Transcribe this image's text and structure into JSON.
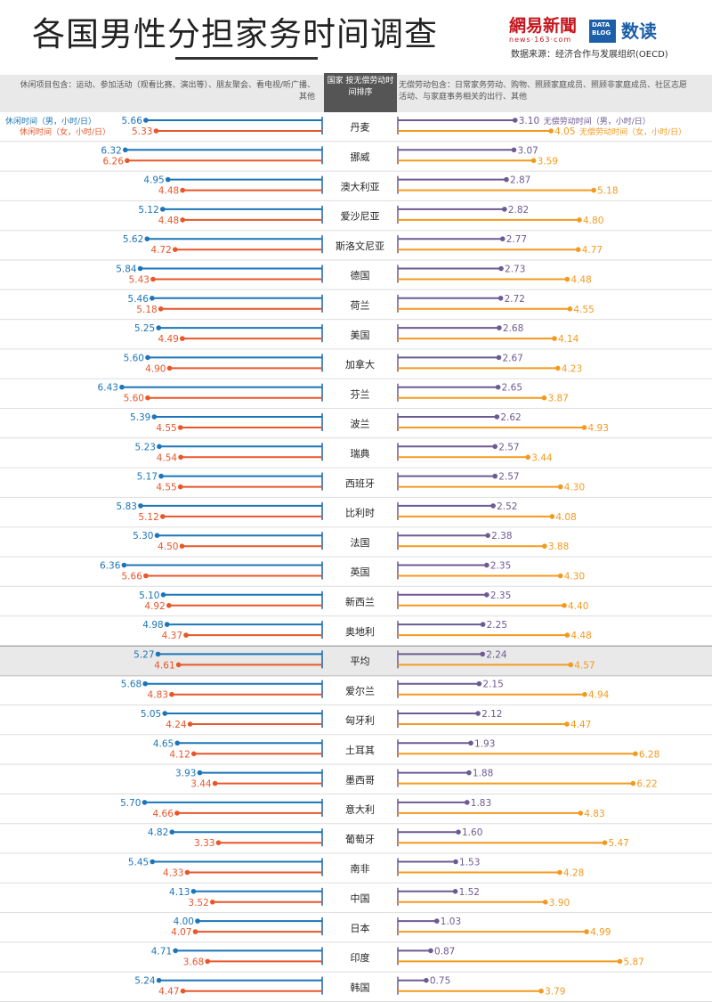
{
  "header": {
    "title": "各国男性分担家务时间调查",
    "logo_netease_cn": "網易新聞",
    "logo_netease_en": "news·163·com",
    "logo_datablog": "DATA BLOG",
    "logo_dushu": "数读",
    "source": "数据来源：经济合作与发展组织(OECD)"
  },
  "notes": {
    "left": "休闲项目包含：运动、参加活动（观看比赛、演出等）、朋友聚会、看电视/听广播、其他",
    "center": "国家 按无偿劳动时间排序",
    "right": "无偿劳动包含：日常家务劳动、购物、照顾家庭成员、照顾非家庭成员、社区志愿活动、与家庭事务相关的出行、其他"
  },
  "colors": {
    "leisure_male": "#1c75b8",
    "leisure_female": "#e8562a",
    "unpaid_male": "#6e5a93",
    "unpaid_female": "#f39a1e",
    "row_highlight": "#e9e9e9"
  },
  "chart_data": {
    "type": "bar",
    "series_labels": {
      "leisure_male": "休闲时间（男，小时/日）",
      "leisure_female": "休闲时间（女，小时/日）",
      "unpaid_male": "无偿劳动时间（男，小时/日）",
      "unpaid_female": "无偿劳动时间（女，小时/日）"
    },
    "categories": [
      "丹麦",
      "挪威",
      "澳大利亚",
      "爱沙尼亚",
      "斯洛文尼亚",
      "德国",
      "荷兰",
      "美国",
      "加拿大",
      "芬兰",
      "波兰",
      "瑞典",
      "西班牙",
      "比利时",
      "法国",
      "英国",
      "新西兰",
      "奥地利",
      "平均",
      "爱尔兰",
      "匈牙利",
      "土耳其",
      "墨西哥",
      "意大利",
      "葡萄牙",
      "南非",
      "中国",
      "日本",
      "印度",
      "韩国"
    ],
    "leisure_male": [
      "5.66",
      "6.32",
      "4.95",
      "5.12",
      "5.62",
      "5.84",
      "5.46",
      "5.25",
      "5.60",
      "6.43",
      "5.39",
      "5.23",
      "5.17",
      "5.83",
      "5.30",
      "6.36",
      "5.10",
      "4.98",
      "5.27",
      "5.68",
      "5.05",
      "4.65",
      "3.93",
      "5.70",
      "4.82",
      "5.45",
      "4.13",
      "4.00",
      "4.71",
      "5.24"
    ],
    "leisure_female": [
      "5.33",
      "6.26",
      "4.48",
      "4.48",
      "4.72",
      "5.43",
      "5.18",
      "4.49",
      "4.90",
      "5.60",
      "4.55",
      "4.54",
      "4.55",
      "5.12",
      "4.50",
      "5.66",
      "4.92",
      "4.37",
      "4.61",
      "4.83",
      "4.24",
      "4.12",
      "3.44",
      "4.66",
      "3.33",
      "4.33",
      "3.52",
      "4.07",
      "3.68",
      "4.47"
    ],
    "unpaid_male": [
      "3.10",
      "3.07",
      "2.87",
      "2.82",
      "2.77",
      "2.73",
      "2.72",
      "2.68",
      "2.67",
      "2.65",
      "2.62",
      "2.57",
      "2.57",
      "2.52",
      "2.38",
      "2.35",
      "2.35",
      "2.25",
      "2.24",
      "2.15",
      "2.12",
      "1.93",
      "1.88",
      "1.83",
      "1.60",
      "1.53",
      "1.52",
      "1.03",
      "0.87",
      "0.75"
    ],
    "unpaid_female": [
      "4.05",
      "3.59",
      "5.18",
      "4.80",
      "4.77",
      "4.48",
      "4.55",
      "4.14",
      "4.23",
      "3.87",
      "4.93",
      "3.44",
      "4.30",
      "4.08",
      "3.88",
      "4.30",
      "4.40",
      "4.48",
      "4.57",
      "4.94",
      "4.47",
      "6.28",
      "6.22",
      "4.83",
      "5.47",
      "4.28",
      "3.90",
      "4.99",
      "5.87",
      "3.79"
    ],
    "highlight_category": "平均"
  }
}
